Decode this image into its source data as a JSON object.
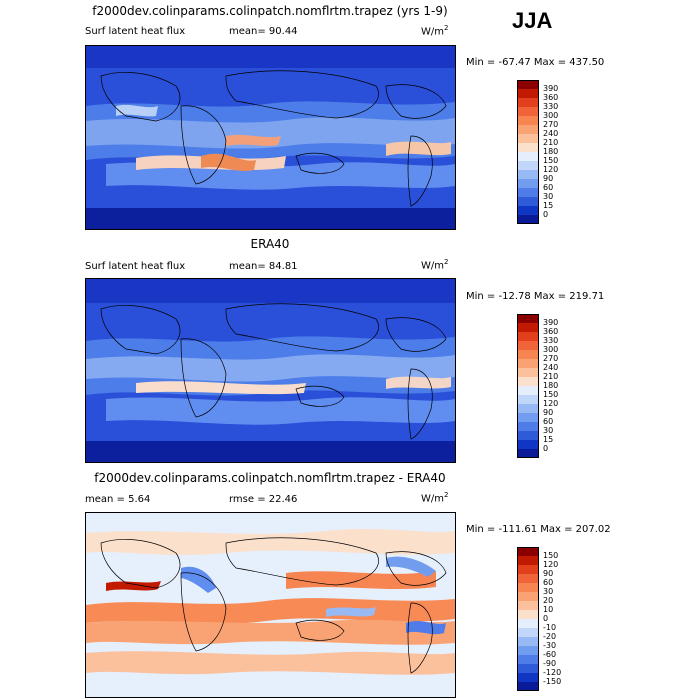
{
  "season": "JJA",
  "colors": {
    "deep_blue": "#1f3fd0",
    "mid_blue": "#4a78e8",
    "light_blue": "#8fb4f4",
    "pale": "#fbe6d6",
    "orange": "#f47a45"
  },
  "panels": [
    {
      "title": "f2000dev.colinparams.colinpatch.nomflrtm.trapez (yrs 1-9)",
      "left_label": "Surf latent heat flux",
      "stat": "mean=  90.44",
      "stat2": "",
      "units": "W/m",
      "units_sup": "2",
      "minmax": "Min = -67.47 Max = 437.50",
      "colorbar": {
        "labels": [
          "390",
          "360",
          "330",
          "300",
          "270",
          "240",
          "210",
          "180",
          "150",
          "120",
          "90",
          "60",
          "30",
          "15",
          "0"
        ],
        "colors": [
          "#8a0000",
          "#c21a00",
          "#e2401c",
          "#f06438",
          "#f78552",
          "#f9a374",
          "#fbc09c",
          "#fbe0cc",
          "#e4eefc",
          "#c2d6fa",
          "#98baf4",
          "#729cee",
          "#4f7ce8",
          "#2f5ad8",
          "#1236c4",
          "#0a1a99"
        ]
      }
    },
    {
      "title": "ERA40",
      "left_label": "Surf latent heat flux",
      "stat": "mean=  84.81",
      "stat2": "",
      "units": "W/m",
      "units_sup": "2",
      "minmax": "Min = -12.78 Max = 219.71",
      "colorbar": {
        "labels": [
          "390",
          "360",
          "330",
          "300",
          "270",
          "240",
          "210",
          "180",
          "150",
          "120",
          "90",
          "60",
          "30",
          "15",
          "0"
        ],
        "colors": [
          "#8a0000",
          "#c21a00",
          "#e2401c",
          "#f06438",
          "#f78552",
          "#f9a374",
          "#fbc09c",
          "#fbe0cc",
          "#e4eefc",
          "#c2d6fa",
          "#98baf4",
          "#729cee",
          "#4f7ce8",
          "#2f5ad8",
          "#1236c4",
          "#0a1a99"
        ]
      }
    },
    {
      "title": "f2000dev.colinparams.colinpatch.nomflrtm.trapez - ERA40",
      "left_label": "mean =   5.64",
      "stat": "",
      "stat2": "rmse =  22.46",
      "units": "W/m",
      "units_sup": "2",
      "minmax": "Min = -111.61 Max = 207.02",
      "colorbar": {
        "labels": [
          "150",
          "120",
          "90",
          "60",
          "30",
          "20",
          "10",
          "0",
          "-10",
          "-20",
          "-30",
          "-60",
          "-90",
          "-120",
          "-150"
        ],
        "colors": [
          "#8a0000",
          "#c21a00",
          "#e2401c",
          "#f06438",
          "#f78552",
          "#f9a374",
          "#fbc09c",
          "#fbe0cc",
          "#e4eefc",
          "#c2d6fa",
          "#98baf4",
          "#729cee",
          "#4f7ce8",
          "#2f5ad8",
          "#1236c4",
          "#0a1a99"
        ]
      }
    }
  ]
}
